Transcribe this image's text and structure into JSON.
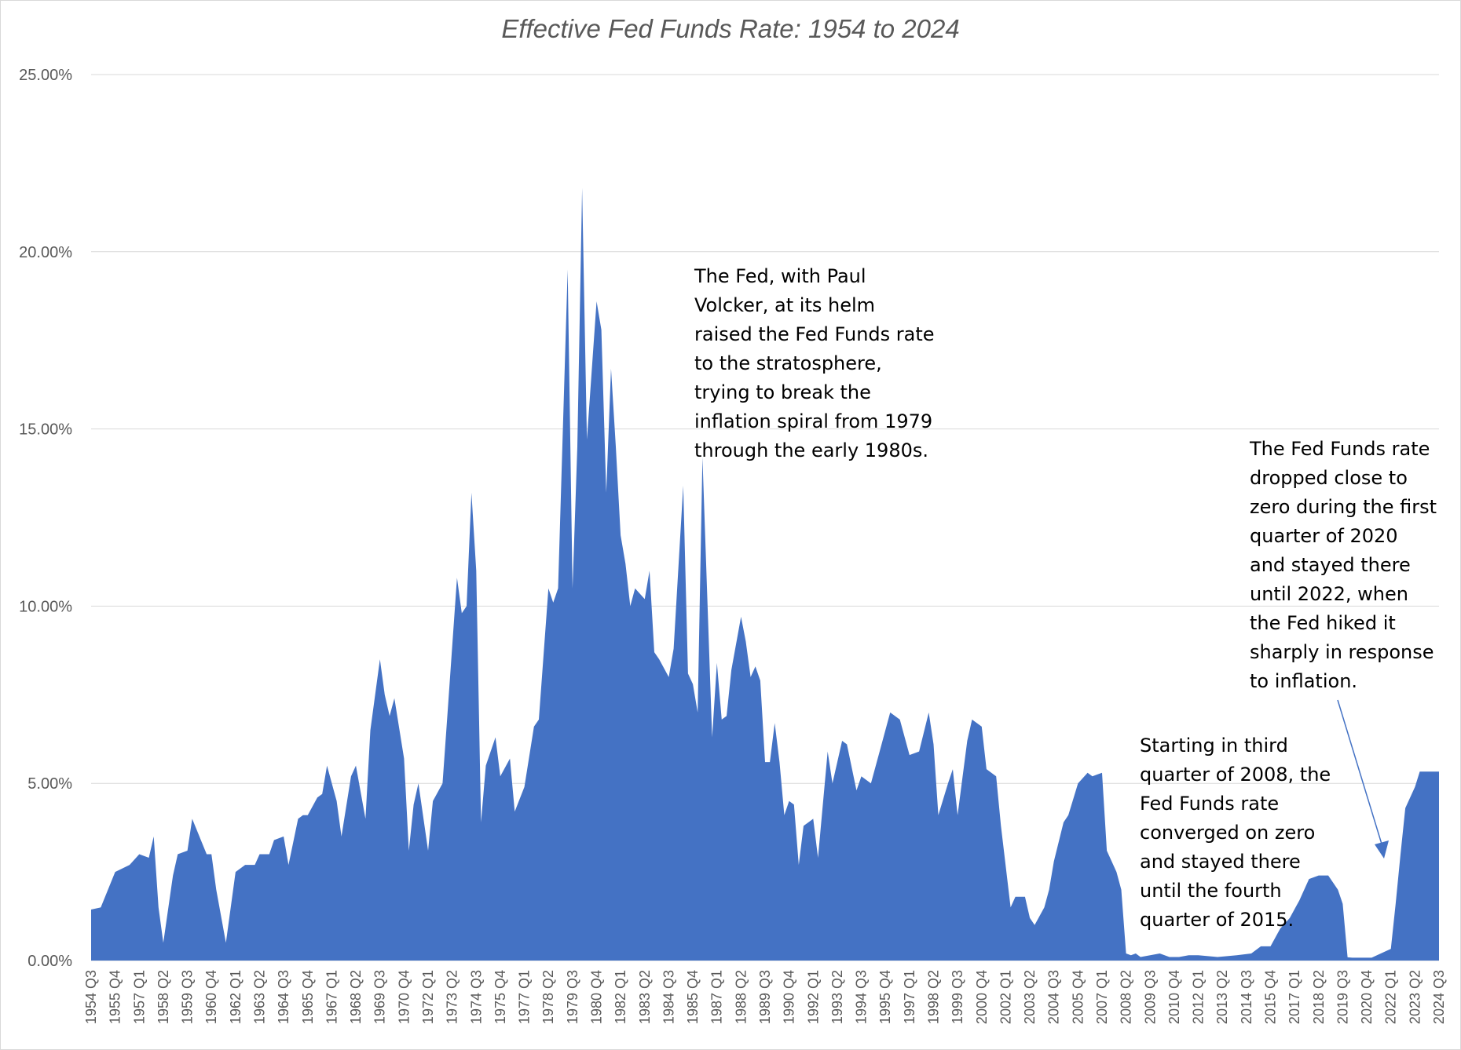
{
  "chart_data": {
    "type": "area",
    "title": "Effective Fed Funds Rate: 1954 to 2024",
    "ylim": [
      0,
      25
    ],
    "y_ticks": [
      "0.00%",
      "5.00%",
      "10.00%",
      "15.00%",
      "20.00%",
      "25.00%"
    ],
    "grid": true,
    "color": "#4472C4",
    "x_tick_labels": [
      "1954 Q3",
      "1955 Q4",
      "1957 Q1",
      "1958 Q2",
      "1959 Q3",
      "1960 Q4",
      "1962 Q1",
      "1963 Q2",
      "1964 Q3",
      "1965 Q4",
      "1967 Q1",
      "1968 Q2",
      "1969 Q3",
      "1970 Q4",
      "1972 Q1",
      "1973 Q2",
      "1974 Q3",
      "1975 Q4",
      "1977 Q1",
      "1978 Q2",
      "1979 Q3",
      "1980 Q4",
      "1982 Q1",
      "1983 Q2",
      "1984 Q3",
      "1985 Q4",
      "1987 Q1",
      "1988 Q2",
      "1989 Q3",
      "1990 Q4",
      "1992 Q1",
      "1993 Q2",
      "1994 Q3",
      "1995 Q4",
      "1997 Q1",
      "1998 Q2",
      "1999 Q3",
      "2000 Q4",
      "2002 Q1",
      "2003 Q2",
      "2004 Q3",
      "2005 Q4",
      "2007 Q1",
      "2008 Q2",
      "2009 Q3",
      "2010 Q4",
      "2012 Q1",
      "2013 Q2",
      "2014 Q3",
      "2015 Q4",
      "2017 Q1",
      "2018 Q2",
      "2019 Q3",
      "2020 Q4",
      "2022 Q1",
      "2023 Q2",
      "2024 Q3"
    ],
    "x": [
      "1954 Q3",
      "1955 Q1",
      "1955 Q4",
      "1956 Q3",
      "1957 Q1",
      "1957 Q3",
      "1957 Q4",
      "1958 Q1",
      "1958 Q2",
      "1958 Q4",
      "1959 Q1",
      "1959 Q3",
      "1959 Q4",
      "1960 Q3",
      "1960 Q4",
      "1961 Q1",
      "1961 Q3",
      "1962 Q1",
      "1962 Q3",
      "1963 Q1",
      "1963 Q2",
      "1963 Q4",
      "1964 Q1",
      "1964 Q3",
      "1964 Q4",
      "1965 Q2",
      "1965 Q3",
      "1965 Q4",
      "1966 Q2",
      "1966 Q3",
      "1966 Q4",
      "1967 Q2",
      "1967 Q3",
      "1968 Q1",
      "1968 Q2",
      "1968 Q4",
      "1969 Q1",
      "1969 Q3",
      "1969 Q4",
      "1970 Q1",
      "1970 Q2",
      "1970 Q4",
      "1971 Q1",
      "1971 Q2",
      "1971 Q3",
      "1972 Q1",
      "1972 Q2",
      "1972 Q4",
      "1973 Q1",
      "1973 Q3",
      "1973 Q4",
      "1974 Q1",
      "1974 Q2",
      "1974 Q3",
      "1974 Q4",
      "1975 Q1",
      "1975 Q3",
      "1975 Q4",
      "1976 Q2",
      "1976 Q3",
      "1977 Q1",
      "1977 Q3",
      "1977 Q4",
      "1978 Q2",
      "1978 Q3",
      "1978 Q4",
      "1979 Q2",
      "1979 Q3",
      "1979 Q4",
      "1980 Q1",
      "1980 Q2",
      "1980 Q4",
      "1981 Q1",
      "1981 Q2",
      "1981 Q3",
      "1981 Q4",
      "1982 Q1",
      "1982 Q2",
      "1982 Q3",
      "1982 Q4",
      "1983 Q2",
      "1983 Q3",
      "1983 Q4",
      "1984 Q1",
      "1984 Q3",
      "1984 Q4",
      "1985 Q2",
      "1985 Q3",
      "1985 Q4",
      "1986 Q1",
      "1986 Q2",
      "1986 Q4",
      "1987 Q1",
      "1987 Q2",
      "1987 Q3",
      "1987 Q4",
      "1988 Q2",
      "1988 Q3",
      "1988 Q4",
      "1989 Q1",
      "1989 Q2",
      "1989 Q3",
      "1989 Q4",
      "1990 Q1",
      "1990 Q2",
      "1990 Q3",
      "1990 Q4",
      "1991 Q1",
      "1991 Q2",
      "1991 Q3",
      "1991 Q4",
      "1992 Q1",
      "1992 Q2",
      "1992 Q4",
      "1993 Q1",
      "1993 Q3",
      "1993 Q4",
      "1994 Q2",
      "1994 Q3",
      "1995 Q1",
      "1995 Q3",
      "1996 Q1",
      "1996 Q3",
      "1997 Q1",
      "1997 Q3",
      "1998 Q1",
      "1998 Q2",
      "1998 Q3",
      "1999 Q1",
      "1999 Q2",
      "1999 Q3",
      "2000 Q1",
      "2000 Q2",
      "2000 Q4",
      "2001 Q1",
      "2001 Q3",
      "2001 Q4",
      "2002 Q2",
      "2002 Q3",
      "2003 Q1",
      "2003 Q2",
      "2003 Q3",
      "2004 Q1",
      "2004 Q2",
      "2004 Q3",
      "2005 Q1",
      "2005 Q2",
      "2005 Q4",
      "2006 Q2",
      "2006 Q3",
      "2007 Q1",
      "2007 Q2",
      "2007 Q4",
      "2008 Q1",
      "2008 Q2",
      "2008 Q3",
      "2008 Q4",
      "2009 Q1",
      "2009 Q3",
      "2010 Q1",
      "2010 Q3",
      "2011 Q1",
      "2011 Q3",
      "2012 Q1",
      "2013 Q1",
      "2014 Q1",
      "2014 Q4",
      "2015 Q2",
      "2015 Q4",
      "2016 Q2",
      "2016 Q4",
      "2017 Q2",
      "2017 Q4",
      "2018 Q2",
      "2018 Q4",
      "2019 Q2",
      "2019 Q3",
      "2019 Q4",
      "2020 Q1",
      "2020 Q2",
      "2021 Q1",
      "2022 Q1",
      "2022 Q2",
      "2022 Q3",
      "2022 Q4",
      "2023 Q2",
      "2023 Q3",
      "2024 Q1",
      "2024 Q3"
    ],
    "values": [
      1.44,
      1.5,
      2.5,
      2.7,
      3.0,
      2.9,
      3.5,
      1.5,
      0.5,
      2.4,
      3.0,
      3.1,
      4.0,
      3.0,
      3.0,
      2.0,
      0.5,
      2.5,
      2.7,
      2.7,
      3.0,
      3.0,
      3.4,
      3.5,
      2.7,
      4.0,
      4.1,
      4.1,
      4.6,
      4.7,
      5.5,
      4.5,
      3.5,
      5.2,
      5.5,
      4.0,
      6.5,
      8.5,
      7.5,
      6.9,
      7.4,
      5.7,
      3.1,
      4.4,
      5.0,
      3.1,
      4.5,
      5.0,
      6.9,
      10.8,
      9.8,
      10.0,
      13.2,
      11.0,
      3.9,
      5.5,
      6.3,
      5.2,
      5.7,
      4.2,
      4.9,
      6.6,
      6.8,
      10.5,
      10.1,
      10.5,
      19.5,
      10.5,
      14.5,
      21.8,
      14.7,
      18.6,
      17.8,
      13.2,
      16.7,
      14.5,
      12.0,
      11.2,
      10.0,
      10.5,
      10.2,
      11.0,
      8.7,
      8.5,
      8.0,
      8.8,
      13.4,
      8.1,
      7.8,
      7.0,
      14.2,
      6.3,
      8.4,
      6.8,
      6.9,
      8.2,
      9.7,
      9.0,
      8.0,
      8.3,
      7.9,
      5.6,
      5.6,
      6.7,
      5.6,
      4.1,
      4.5,
      4.4,
      2.7,
      3.8,
      3.9,
      4.0,
      2.9,
      5.9,
      5.0,
      6.2,
      6.1,
      4.8,
      5.2,
      5.0,
      6.0,
      7.0,
      6.8,
      5.8,
      5.9,
      7.0,
      6.1,
      4.1,
      5.0,
      5.4,
      4.1,
      6.2,
      6.8,
      6.6,
      5.4,
      5.2,
      3.8,
      1.5,
      1.8,
      1.8,
      1.2,
      1.0,
      1.5,
      2.0,
      2.8,
      3.9,
      4.1,
      5.0,
      5.3,
      5.2,
      5.3,
      3.1,
      2.5,
      2.0,
      0.2,
      0.15,
      0.2,
      0.1,
      0.15,
      0.2,
      0.1,
      0.1,
      0.15,
      0.15,
      0.1,
      0.15,
      0.2,
      0.4,
      0.4,
      0.9,
      1.2,
      1.7,
      2.3,
      2.4,
      2.4,
      2.0,
      1.6,
      0.09,
      0.08,
      0.08,
      0.08,
      0.33,
      1.6,
      3.0,
      4.3,
      4.9,
      5.33,
      5.33,
      5.33
    ]
  },
  "annotations": {
    "volcker": [
      "The Fed, with Paul",
      "Volcker, at its helm",
      "raised the Fed Funds rate",
      "to the stratosphere,",
      "trying to break the",
      "inflation spiral from 1979",
      "through the early 1980s."
    ],
    "zero_2008": [
      "Starting in third",
      "quarter of 2008, the",
      "Fed Funds rate",
      "converged on zero",
      "and stayed there",
      "until the fourth",
      "quarter of 2015."
    ],
    "zero_2020": [
      "The Fed Funds rate",
      "dropped close to",
      "zero during the first",
      "quarter of 2020",
      "and stayed there",
      "until 2022, when",
      "the Fed hiked it",
      "sharply in response",
      "to inflation."
    ]
  }
}
